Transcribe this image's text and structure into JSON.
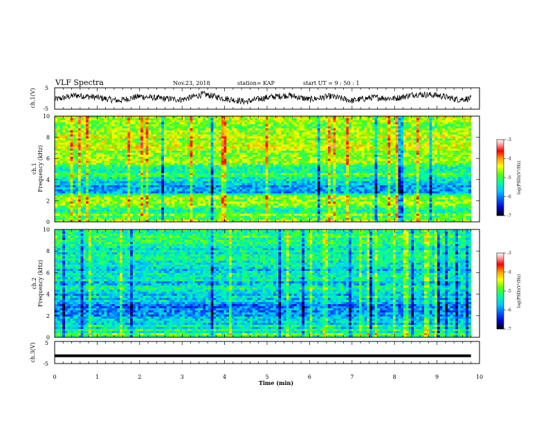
{
  "header": {
    "title": "VLF Spectra",
    "date": "Nov.23, 2018",
    "station": "station= KAP",
    "start": "start  UT =   9 : 50 : 1"
  },
  "colorbar": {
    "label": "log(PSD)(V²/Hz)",
    "ticks": [
      "-3",
      "-4",
      "-5",
      "-6",
      "-7"
    ],
    "colors": [
      "#000000",
      "#0000c8",
      "#0050ff",
      "#00c8ff",
      "#00ff96",
      "#64ff00",
      "#ffff00",
      "#ffa000",
      "#ff0000",
      "#ff9696",
      "#ffffff"
    ]
  },
  "chart_data": [
    {
      "type": "line",
      "name": "ch1-waveform",
      "ylabel": "ch.1(V)",
      "ylim": [
        -5,
        5
      ],
      "yticks": [
        "5",
        "-5"
      ],
      "x": [
        0,
        0.5,
        1,
        1.5,
        2,
        2.5,
        3,
        3.5,
        4,
        4.5,
        5,
        5.5,
        6,
        6.5,
        7,
        7.5,
        8,
        8.5,
        9,
        9.5,
        9.8
      ],
      "y": [
        -0.5,
        1.5,
        0.5,
        -1,
        1,
        0,
        -0.5,
        2,
        0,
        -1.5,
        0.5,
        1.5,
        -0.5,
        1,
        -1,
        0.5,
        0,
        2,
        1.5,
        -0.5,
        0
      ],
      "xlim": [
        0,
        10
      ]
    },
    {
      "type": "heatmap",
      "name": "ch1-spectrogram",
      "ylabel": "ch.1\nFrequency (kHz)",
      "yticks": [
        "0",
        "2",
        "4",
        "6",
        "8",
        "10"
      ],
      "ylim": [
        0,
        10
      ],
      "xlim": [
        0,
        10
      ],
      "data_end_min": 9.8,
      "freq_kHz": [
        0,
        0.5,
        1,
        1.5,
        2,
        2.5,
        3,
        3.5,
        4,
        4.5,
        5,
        5.5,
        6,
        6.5,
        7,
        7.5,
        8,
        8.5,
        9,
        9.5,
        10
      ],
      "mean_log_psd": [
        -4.6,
        -4.9,
        -5.1,
        -5.0,
        -4.7,
        -5.1,
        -6.1,
        -5.6,
        -5.4,
        -5.2,
        -5.3,
        -4.9,
        -4.7,
        -4.6,
        -4.6,
        -4.6,
        -4.6,
        -4.7,
        -4.7,
        -4.7,
        -4.7
      ],
      "colorbar": "log(PSD)(V²/Hz)",
      "crange": [
        -7,
        -3
      ]
    },
    {
      "type": "heatmap",
      "name": "ch2-spectrogram",
      "ylabel": "ch.2\nFrequency (kHz)",
      "yticks": [
        "0",
        "2",
        "4",
        "6",
        "8",
        "10"
      ],
      "ylim": [
        0,
        10
      ],
      "xlim": [
        0,
        10
      ],
      "data_end_min": 9.8,
      "freq_kHz": [
        0,
        0.5,
        1,
        1.5,
        2,
        2.5,
        3,
        3.5,
        4,
        4.5,
        5,
        5.5,
        6,
        6.5,
        7,
        7.5,
        8,
        8.5,
        9,
        9.5,
        10
      ],
      "mean_log_psd": [
        -5.0,
        -5.2,
        -5.4,
        -5.6,
        -5.8,
        -5.9,
        -6.1,
        -5.6,
        -5.5,
        -5.4,
        -5.6,
        -5.5,
        -5.6,
        -5.6,
        -5.4,
        -5.4,
        -5.3,
        -5.3,
        -5.2,
        -5.2,
        -5.1
      ],
      "colorbar": "log(PSD)(V²/Hz)",
      "crange": [
        -7,
        -3
      ]
    },
    {
      "type": "line",
      "name": "ch3-waveform",
      "ylabel": "ch.3(V)",
      "ylim": [
        -5,
        5
      ],
      "yticks": [
        "5",
        "-5"
      ],
      "x": [
        0,
        9.8
      ],
      "y": [
        -1.5,
        -1.5
      ],
      "xlim": [
        0,
        10
      ]
    }
  ],
  "xaxis": {
    "label": "Time (min)",
    "ticks": [
      "0",
      "1",
      "2",
      "3",
      "4",
      "5",
      "6",
      "7",
      "8",
      "9",
      "10"
    ]
  }
}
